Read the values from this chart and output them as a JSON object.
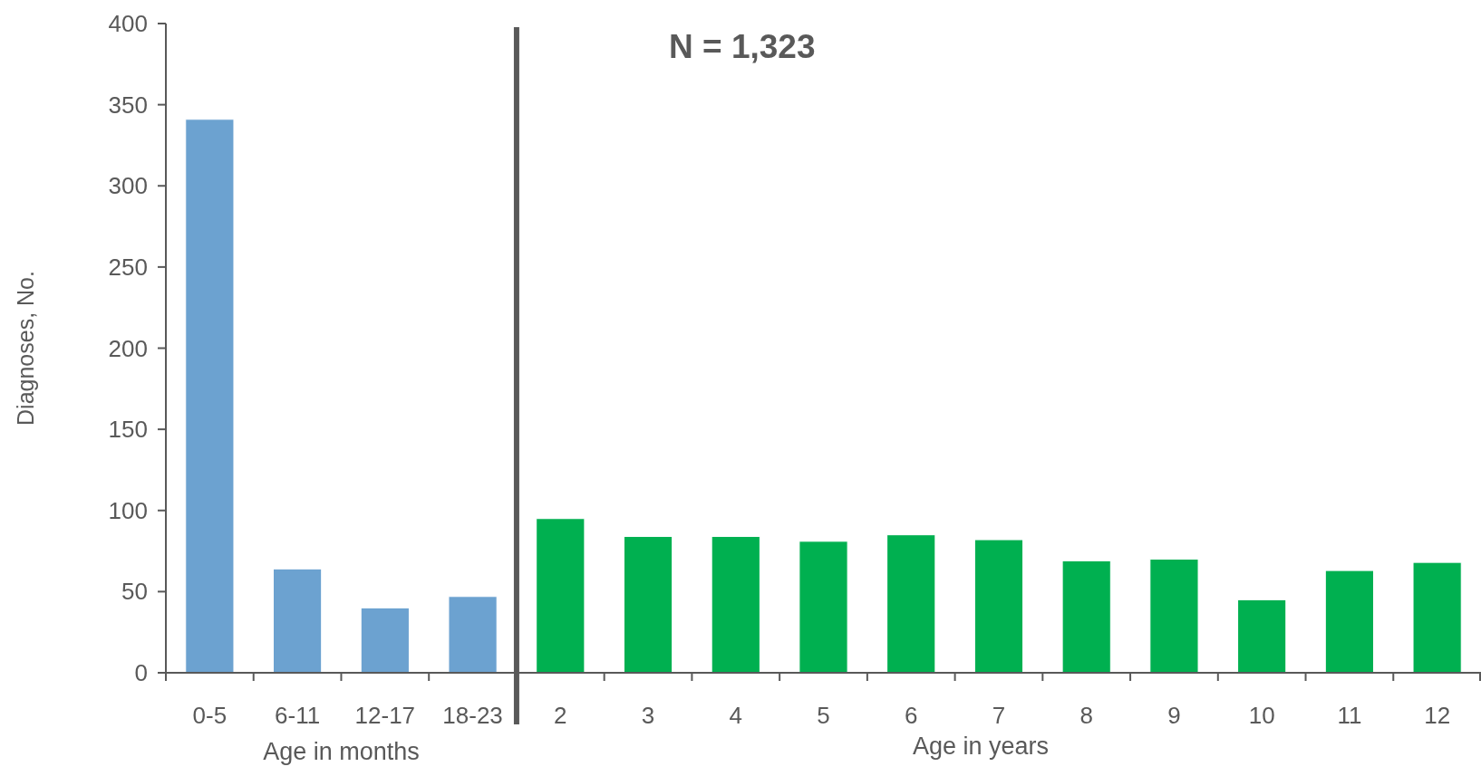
{
  "chart_data": {
    "type": "bar",
    "ylabel": "Diagnoses,  No.",
    "categories": [
      "0-5",
      "6-11",
      "12-17",
      "18-23",
      "2",
      "3",
      "4",
      "5",
      "6",
      "7",
      "8",
      "9",
      "10",
      "11",
      "12"
    ],
    "values": [
      341,
      64,
      40,
      47,
      95,
      84,
      84,
      81,
      85,
      82,
      69,
      70,
      45,
      63,
      68
    ],
    "colors": [
      "#6ca2d0",
      "#6ca2d0",
      "#6ca2d0",
      "#6ca2d0",
      "#00b050",
      "#00b050",
      "#00b050",
      "#00b050",
      "#00b050",
      "#00b050",
      "#00b050",
      "#00b050",
      "#00b050",
      "#00b050",
      "#00b050"
    ],
    "ylim": [
      0,
      400
    ],
    "yticks": [
      0,
      50,
      100,
      150,
      200,
      250,
      300,
      350,
      400
    ],
    "annotations": [
      "N = 1,323",
      "Age in months",
      "Age in years"
    ],
    "grid": false
  }
}
